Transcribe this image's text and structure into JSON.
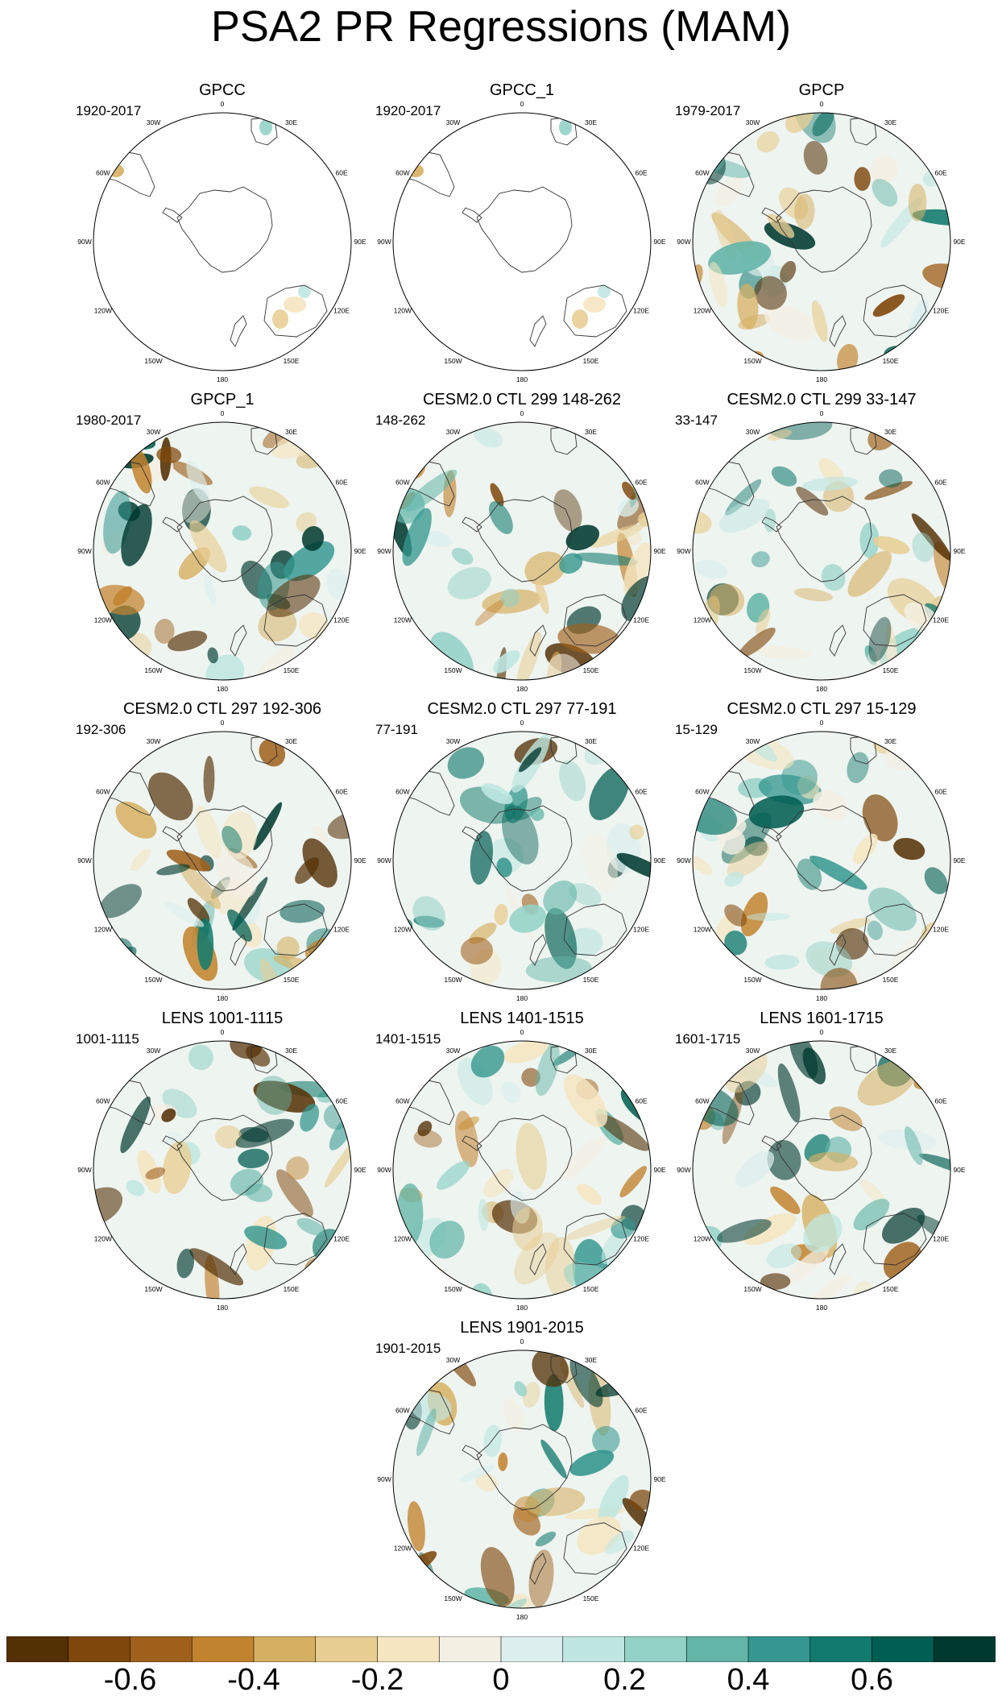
{
  "title": "PSA2 PR Regressions (MAM)",
  "longitude_labels": [
    "0",
    "30E",
    "60E",
    "90E",
    "120E",
    "150E",
    "180",
    "150W",
    "120W",
    "90W",
    "60W",
    "30W"
  ],
  "panels": [
    {
      "title": "GPCC",
      "period": "1920-2017",
      "coverage": "land-only"
    },
    {
      "title": "GPCC_1",
      "period": "1920-2017",
      "coverage": "land-only"
    },
    {
      "title": "GPCP",
      "period": "1979-2017",
      "coverage": "global"
    },
    {
      "title": "GPCP_1",
      "period": "1980-2017",
      "coverage": "global"
    },
    {
      "title": "CESM2.0 CTL 299 148-262",
      "period": "148-262",
      "coverage": "global"
    },
    {
      "title": "CESM2.0 CTL 299 33-147",
      "period": "33-147",
      "coverage": "global"
    },
    {
      "title": "CESM2.0 CTL 297 192-306",
      "period": "192-306",
      "coverage": "global"
    },
    {
      "title": "CESM2.0 CTL 297 77-191",
      "period": "77-191",
      "coverage": "global"
    },
    {
      "title": "CESM2.0 CTL 297 15-129",
      "period": "15-129",
      "coverage": "global"
    },
    {
      "title": "LENS 1001-1115",
      "period": "1001-1115",
      "coverage": "global"
    },
    {
      "title": "LENS 1401-1515",
      "period": "1401-1515",
      "coverage": "global"
    },
    {
      "title": "LENS 1601-1715",
      "period": "1601-1715",
      "coverage": "global"
    },
    {
      "title": "LENS 1901-2015",
      "period": "1901-2015",
      "coverage": "global"
    }
  ],
  "colorbar": {
    "colors": [
      "#543005",
      "#7f470b",
      "#a0611c",
      "#c2832e",
      "#d6b062",
      "#e8ce93",
      "#f5e5c0",
      "#f4efe3",
      "#dcefee",
      "#bfe6e1",
      "#93d2c7",
      "#63b5a8",
      "#35978f",
      "#127a6e",
      "#015e52",
      "#00392f"
    ],
    "labels": [
      "-0.6",
      "-0.4",
      "-0.2",
      "0",
      "0.2",
      "0.4",
      "0.6"
    ]
  }
}
